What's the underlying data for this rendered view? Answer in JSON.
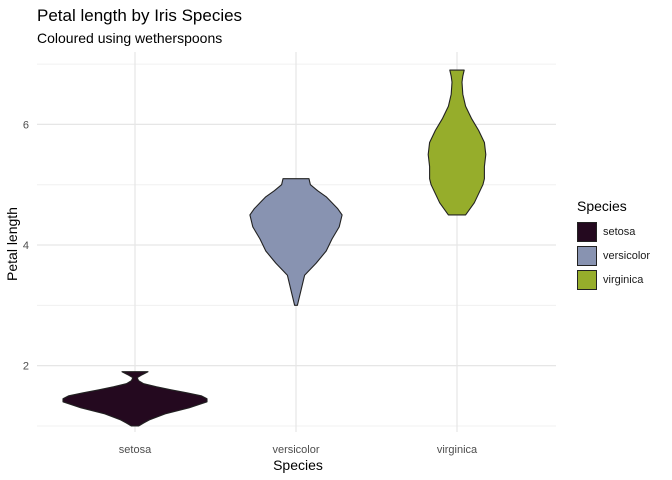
{
  "chart_data": {
    "type": "violin",
    "title": "Petal length by Iris Species",
    "subtitle": "Coloured using wetherspoons",
    "xlabel": "Species",
    "ylabel": "Petal length",
    "categories": [
      "setosa",
      "versicolor",
      "virginica"
    ],
    "ylim": [
      0.9,
      7.2
    ],
    "yticks": [
      2,
      4,
      6
    ],
    "grid": true,
    "legend": {
      "title": "Species",
      "position": "right",
      "items": [
        "setosa",
        "versicolor",
        "virginica"
      ]
    },
    "series": [
      {
        "name": "setosa",
        "color": "#24091f",
        "min": 1.0,
        "max": 1.9,
        "profile": [
          [
            1.0,
            0.05
          ],
          [
            1.05,
            0.12
          ],
          [
            1.1,
            0.2
          ],
          [
            1.2,
            0.42
          ],
          [
            1.3,
            0.75
          ],
          [
            1.4,
            1.0
          ],
          [
            1.45,
            1.0
          ],
          [
            1.5,
            0.92
          ],
          [
            1.55,
            0.72
          ],
          [
            1.6,
            0.5
          ],
          [
            1.65,
            0.3
          ],
          [
            1.7,
            0.12
          ],
          [
            1.75,
            0.05
          ],
          [
            1.8,
            0.03
          ],
          [
            1.85,
            0.1
          ],
          [
            1.9,
            0.18
          ]
        ]
      },
      {
        "name": "versicolor",
        "color": "#8893b1",
        "min": 3.0,
        "max": 5.1,
        "profile": [
          [
            3.0,
            0.02
          ],
          [
            3.2,
            0.06
          ],
          [
            3.5,
            0.12
          ],
          [
            3.7,
            0.28
          ],
          [
            3.9,
            0.42
          ],
          [
            4.1,
            0.5
          ],
          [
            4.3,
            0.6
          ],
          [
            4.5,
            0.64
          ],
          [
            4.6,
            0.58
          ],
          [
            4.7,
            0.5
          ],
          [
            4.8,
            0.42
          ],
          [
            4.9,
            0.3
          ],
          [
            5.0,
            0.2
          ],
          [
            5.1,
            0.18
          ]
        ]
      },
      {
        "name": "virginica",
        "color": "#96ad2b",
        "min": 4.5,
        "max": 6.9,
        "profile": [
          [
            4.5,
            0.12
          ],
          [
            4.7,
            0.24
          ],
          [
            5.0,
            0.36
          ],
          [
            5.1,
            0.38
          ],
          [
            5.3,
            0.38
          ],
          [
            5.5,
            0.4
          ],
          [
            5.7,
            0.38
          ],
          [
            5.9,
            0.3
          ],
          [
            6.1,
            0.2
          ],
          [
            6.3,
            0.12
          ],
          [
            6.5,
            0.08
          ],
          [
            6.7,
            0.07
          ],
          [
            6.8,
            0.08
          ],
          [
            6.9,
            0.1
          ]
        ]
      }
    ]
  }
}
